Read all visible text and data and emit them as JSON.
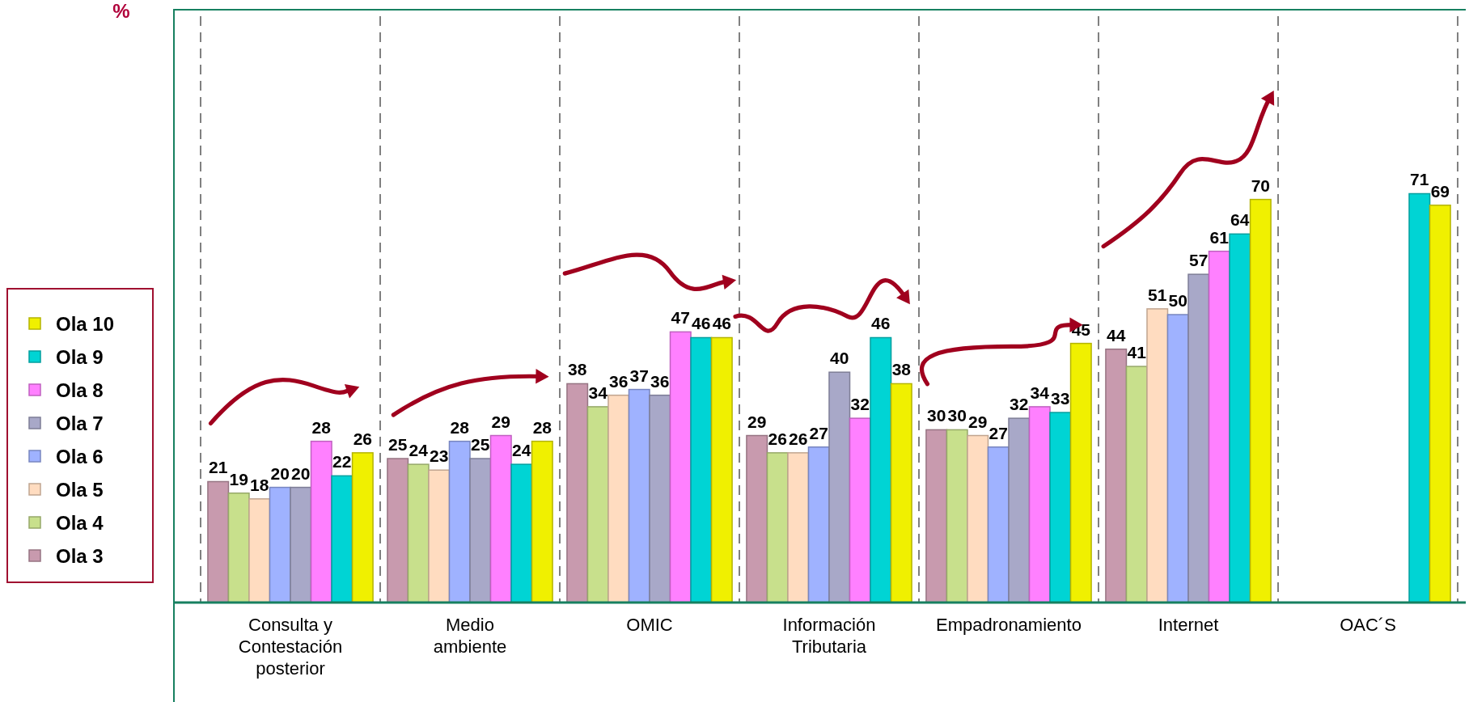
{
  "chart_data": {
    "type": "bar",
    "annotations": [
      "%"
    ],
    "categories": [
      "Consulta y Contestación posterior",
      "Medio ambiente",
      "OMIC",
      "Información Tributaria",
      "Empadronamiento",
      "Internet",
      "OAC´S"
    ],
    "series": [
      {
        "name": "Ola 3",
        "color": "#c89aae",
        "values": [
          21,
          25,
          38,
          29,
          30,
          44,
          null
        ]
      },
      {
        "name": "Ola 4",
        "color": "#c8e08c",
        "values": [
          19,
          24,
          34,
          26,
          30,
          41,
          null
        ]
      },
      {
        "name": "Ola 5",
        "color": "#ffdcc0",
        "values": [
          18,
          23,
          36,
          26,
          29,
          51,
          null
        ]
      },
      {
        "name": "Ola 6",
        "color": "#9fb2ff",
        "values": [
          20,
          28,
          37,
          27,
          27,
          50,
          null
        ]
      },
      {
        "name": "Ola 7",
        "color": "#a8a8c8",
        "values": [
          20,
          25,
          36,
          40,
          32,
          57,
          null
        ]
      },
      {
        "name": "Ola 8",
        "color": "#ff80ff",
        "values": [
          28,
          29,
          47,
          32,
          34,
          61,
          null
        ]
      },
      {
        "name": "Ola 9",
        "color": "#00d4d4",
        "values": [
          22,
          24,
          46,
          46,
          33,
          64,
          71
        ]
      },
      {
        "name": "Ola 10",
        "color": "#f0f000",
        "values": [
          26,
          28,
          46,
          38,
          45,
          70,
          69
        ]
      }
    ],
    "data_labels": true,
    "legend": "left",
    "grid": "x"
  }
}
